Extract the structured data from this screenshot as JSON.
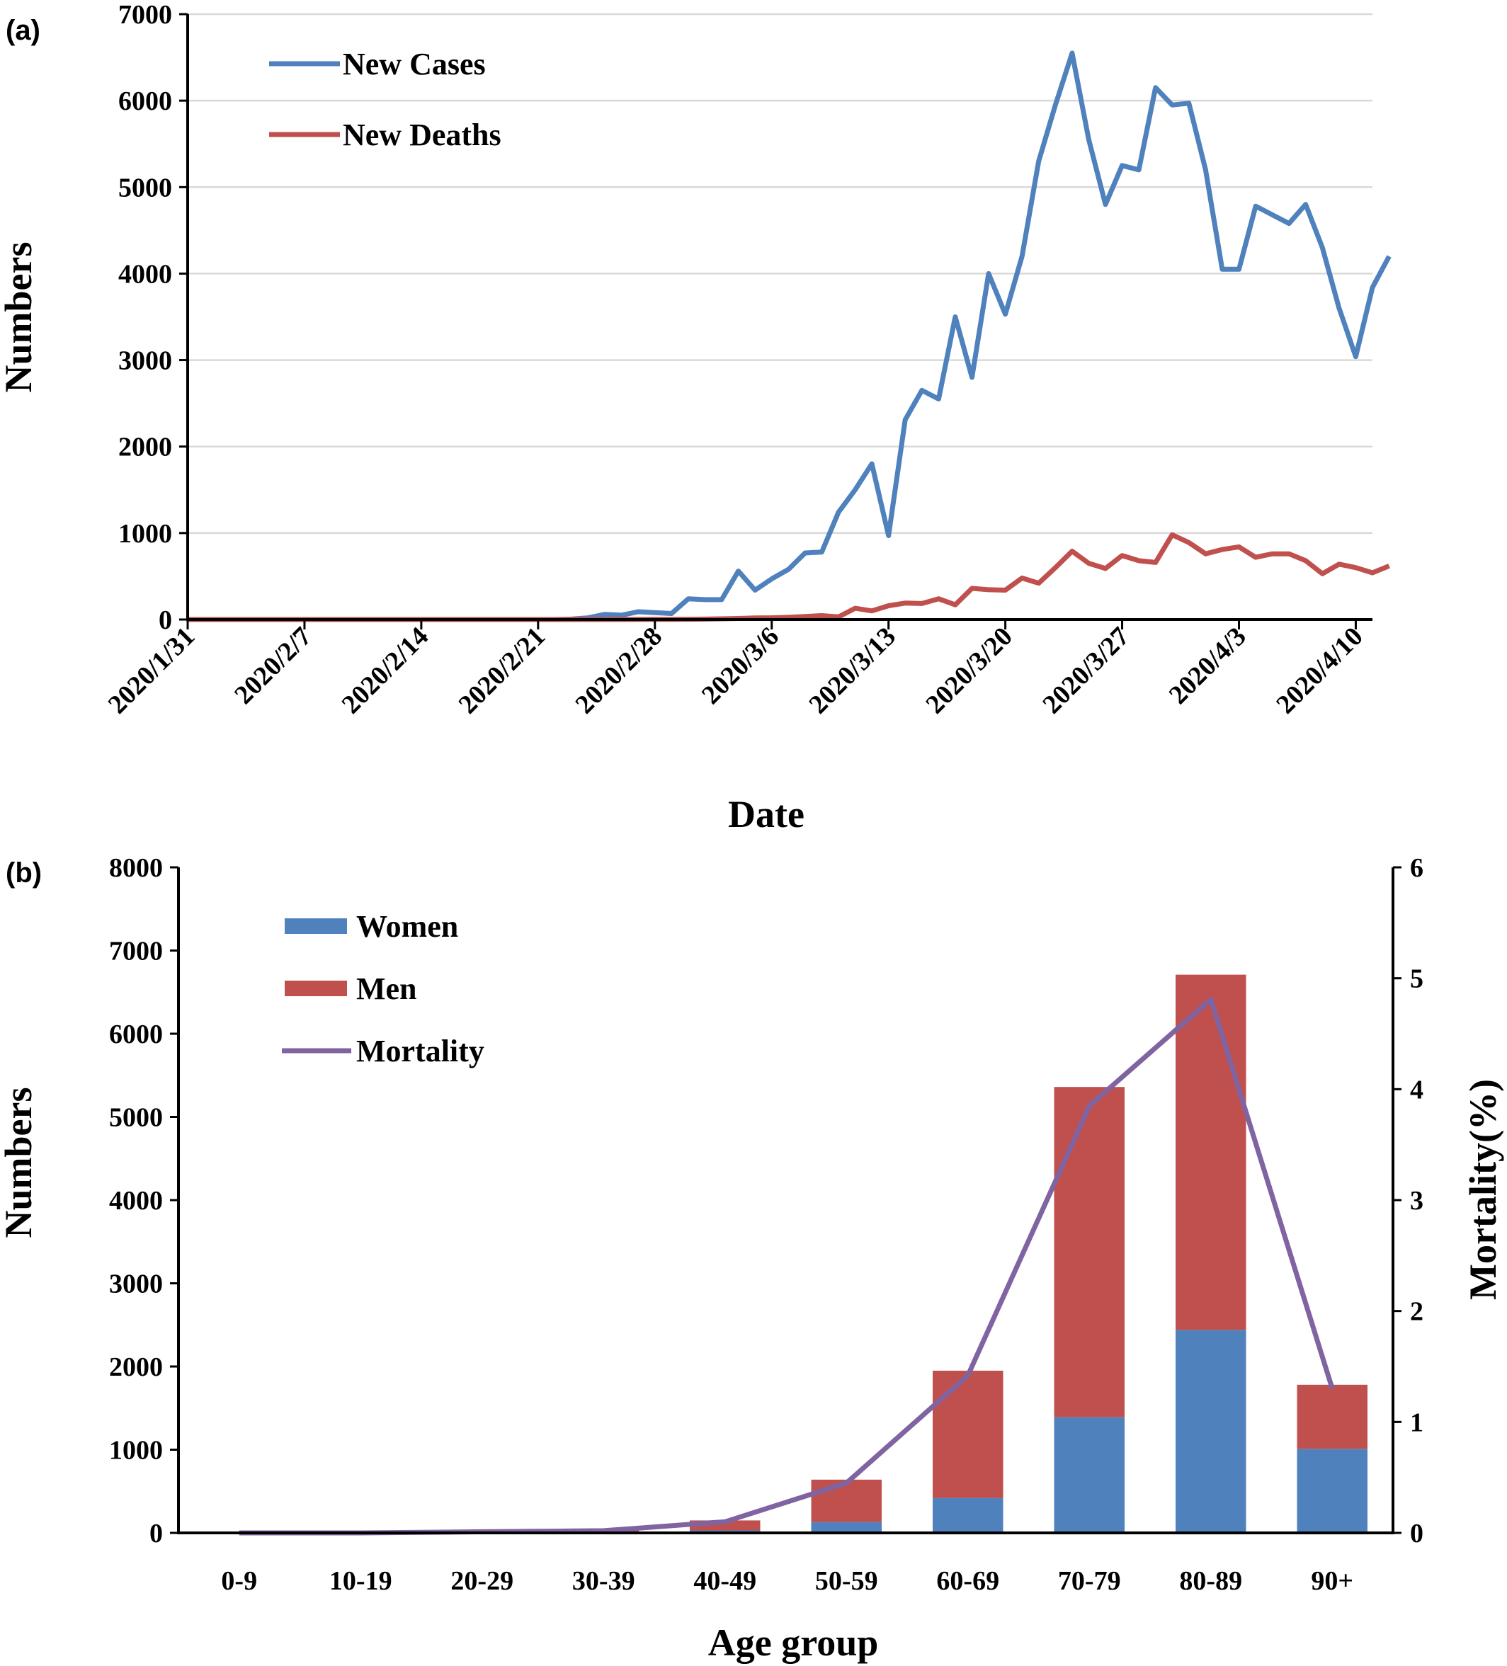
{
  "chart_data": [
    {
      "panel": "(a)",
      "type": "line",
      "xlabel": "Date",
      "ylabel": "Numbers",
      "ylim": [
        0,
        7000
      ],
      "yticks": [
        0,
        1000,
        2000,
        3000,
        4000,
        5000,
        6000,
        7000
      ],
      "xticks": [
        "2020/1/31",
        "2020/2/7",
        "2020/2/14",
        "2020/2/21",
        "2020/2/28",
        "2020/3/6",
        "2020/3/13",
        "2020/3/20",
        "2020/3/27",
        "2020/4/3",
        "2020/4/10"
      ],
      "xlim": [
        "2020/1/31",
        "2020/4/11"
      ],
      "grid": "horizontal",
      "legend_position": "top-left",
      "series": [
        {
          "name": "New Cases",
          "color": "#4f81bd",
          "points": [
            [
              "2020/1/31",
              0
            ],
            [
              "2020/2/1",
              0
            ],
            [
              "2020/2/2",
              0
            ],
            [
              "2020/2/3",
              0
            ],
            [
              "2020/2/4",
              0
            ],
            [
              "2020/2/5",
              0
            ],
            [
              "2020/2/6",
              0
            ],
            [
              "2020/2/7",
              0
            ],
            [
              "2020/2/8",
              0
            ],
            [
              "2020/2/9",
              0
            ],
            [
              "2020/2/10",
              0
            ],
            [
              "2020/2/11",
              0
            ],
            [
              "2020/2/12",
              0
            ],
            [
              "2020/2/13",
              0
            ],
            [
              "2020/2/14",
              0
            ],
            [
              "2020/2/15",
              0
            ],
            [
              "2020/2/16",
              0
            ],
            [
              "2020/2/17",
              0
            ],
            [
              "2020/2/18",
              0
            ],
            [
              "2020/2/19",
              0
            ],
            [
              "2020/2/20",
              0
            ],
            [
              "2020/2/21",
              0
            ],
            [
              "2020/2/22",
              0
            ],
            [
              "2020/2/23",
              5
            ],
            [
              "2020/2/24",
              20
            ],
            [
              "2020/2/25",
              60
            ],
            [
              "2020/2/26",
              50
            ],
            [
              "2020/2/27",
              90
            ],
            [
              "2020/2/28",
              80
            ],
            [
              "2020/2/29",
              70
            ],
            [
              "2020/3/1",
              240
            ],
            [
              "2020/3/2",
              230
            ],
            [
              "2020/3/3",
              230
            ],
            [
              "2020/3/4",
              560
            ],
            [
              "2020/3/5",
              340
            ],
            [
              "2020/3/6",
              470
            ],
            [
              "2020/3/7",
              580
            ],
            [
              "2020/3/8",
              770
            ],
            [
              "2020/3/9",
              780
            ],
            [
              "2020/3/10",
              1240
            ],
            [
              "2020/3/11",
              1500
            ],
            [
              "2020/3/12",
              1800
            ],
            [
              "2020/3/13",
              970
            ],
            [
              "2020/3/14",
              2310
            ],
            [
              "2020/3/15",
              2650
            ],
            [
              "2020/3/16",
              2550
            ],
            [
              "2020/3/17",
              3500
            ],
            [
              "2020/3/18",
              2800
            ],
            [
              "2020/3/19",
              4000
            ],
            [
              "2020/3/20",
              3530
            ],
            [
              "2020/3/21",
              4200
            ],
            [
              "2020/3/22",
              5300
            ],
            [
              "2020/3/23",
              5950
            ],
            [
              "2020/3/24",
              6550
            ],
            [
              "2020/3/25",
              5550
            ],
            [
              "2020/3/26",
              4800
            ],
            [
              "2020/3/27",
              5250
            ],
            [
              "2020/3/28",
              5200
            ],
            [
              "2020/3/29",
              6150
            ],
            [
              "2020/3/30",
              5950
            ],
            [
              "2020/3/31",
              5970
            ],
            [
              "2020/4/1",
              5200
            ],
            [
              "2020/4/2",
              4050
            ],
            [
              "2020/4/3",
              4050
            ],
            [
              "2020/4/4",
              4780
            ],
            [
              "2020/4/5",
              4680
            ],
            [
              "2020/4/6",
              4580
            ],
            [
              "2020/4/7",
              4800
            ],
            [
              "2020/4/8",
              4300
            ],
            [
              "2020/4/9",
              3600
            ],
            [
              "2020/4/10",
              3040
            ],
            [
              "2020/4/11",
              3840
            ],
            [
              "2020/4/12",
              4200
            ]
          ]
        },
        {
          "name": "New Deaths",
          "color": "#c0504d",
          "points": [
            [
              "2020/1/31",
              0
            ],
            [
              "2020/2/7",
              0
            ],
            [
              "2020/2/14",
              0
            ],
            [
              "2020/2/21",
              0
            ],
            [
              "2020/2/28",
              2
            ],
            [
              "2020/2/29",
              2
            ],
            [
              "2020/3/1",
              3
            ],
            [
              "2020/3/2",
              5
            ],
            [
              "2020/3/3",
              8
            ],
            [
              "2020/3/4",
              12
            ],
            [
              "2020/3/5",
              18
            ],
            [
              "2020/3/6",
              20
            ],
            [
              "2020/3/7",
              25
            ],
            [
              "2020/3/8",
              35
            ],
            [
              "2020/3/9",
              45
            ],
            [
              "2020/3/10",
              30
            ],
            [
              "2020/3/11",
              130
            ],
            [
              "2020/3/12",
              100
            ],
            [
              "2020/3/13",
              160
            ],
            [
              "2020/3/14",
              190
            ],
            [
              "2020/3/15",
              185
            ],
            [
              "2020/3/16",
              240
            ],
            [
              "2020/3/17",
              170
            ],
            [
              "2020/3/18",
              360
            ],
            [
              "2020/3/19",
              345
            ],
            [
              "2020/3/20",
              340
            ],
            [
              "2020/3/21",
              480
            ],
            [
              "2020/3/22",
              420
            ],
            [
              "2020/3/23",
              600
            ],
            [
              "2020/3/24",
              790
            ],
            [
              "2020/3/25",
              650
            ],
            [
              "2020/3/26",
              590
            ],
            [
              "2020/3/27",
              740
            ],
            [
              "2020/3/28",
              680
            ],
            [
              "2020/3/29",
              660
            ],
            [
              "2020/3/30",
              980
            ],
            [
              "2020/3/31",
              890
            ],
            [
              "2020/4/1",
              760
            ],
            [
              "2020/4/2",
              810
            ],
            [
              "2020/4/3",
              840
            ],
            [
              "2020/4/4",
              720
            ],
            [
              "2020/4/5",
              760
            ],
            [
              "2020/4/6",
              760
            ],
            [
              "2020/4/7",
              680
            ],
            [
              "2020/4/8",
              530
            ],
            [
              "2020/4/9",
              640
            ],
            [
              "2020/4/10",
              600
            ],
            [
              "2020/4/11",
              540
            ],
            [
              "2020/4/12",
              620
            ]
          ]
        }
      ]
    },
    {
      "panel": "(b)",
      "type": "bar",
      "stacked": true,
      "xlabel": "Age group",
      "ylabel": "Numbers",
      "y2label": "Mortality(%)",
      "ylim": [
        0,
        8000
      ],
      "yticks": [
        0,
        1000,
        2000,
        3000,
        4000,
        5000,
        6000,
        7000,
        8000
      ],
      "y2lim": [
        0,
        6
      ],
      "y2ticks": [
        0,
        1,
        2,
        3,
        4,
        5,
        6
      ],
      "categories": [
        "0-9",
        "10-19",
        "20-29",
        "30-39",
        "40-49",
        "50-59",
        "60-69",
        "70-79",
        "80-89",
        "90+"
      ],
      "legend_position": "top-left",
      "series": [
        {
          "name": "Women",
          "color": "#4f81bd",
          "values": [
            0,
            0,
            3,
            10,
            30,
            130,
            420,
            1390,
            2440,
            1010
          ]
        },
        {
          "name": "Men",
          "color": "#c0504d",
          "values": [
            0,
            2,
            7,
            25,
            120,
            510,
            1530,
            3970,
            4270,
            770
          ]
        }
      ],
      "line_series": {
        "name": "Mortality",
        "color": "#8064a2",
        "axis": "right",
        "values": [
          0,
          0,
          0.01,
          0.02,
          0.1,
          0.45,
          1.42,
          3.85,
          4.81,
          1.3
        ]
      }
    }
  ]
}
